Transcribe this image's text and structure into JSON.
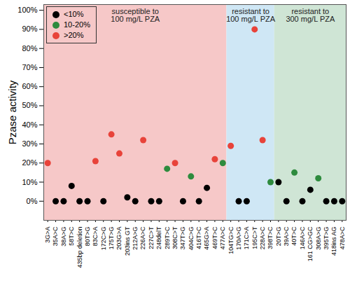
{
  "chart_data": {
    "type": "scatter",
    "y_label": "Pzase activity",
    "categories": [
      "3G>A",
      "35A>C",
      "38A>G",
      "58T>C",
      "435bp deletion",
      "80T>G",
      "83C>A",
      "172C>G",
      "175T>G",
      "203G>A",
      "203ins GT",
      "212A>G",
      "226A>C",
      "227C>T",
      "248delT",
      "289T>C",
      "308C>T",
      "347T>G",
      "404C>G",
      "416T>C",
      "465G>A",
      "469T>C",
      "477A>C",
      "104TG>C",
      "170A>G",
      "171C>A",
      "195C>T",
      "228A>C",
      "398T>C",
      "20T>G",
      "39A>C",
      "40T>C",
      "146A>C",
      "161 CG>GC",
      "308A>G",
      "395T>G",
      "418ins AG",
      "478A>C"
    ],
    "series": [
      {
        "name": "<10%",
        "color": "#000000",
        "marker": "circle",
        "values": [
          null,
          0,
          0,
          8,
          0,
          0,
          null,
          0,
          null,
          null,
          2,
          0,
          null,
          0,
          0,
          null,
          null,
          0,
          null,
          0,
          7,
          null,
          null,
          null,
          0,
          0,
          null,
          null,
          null,
          10,
          0,
          null,
          0,
          6,
          null,
          0,
          0,
          0
        ]
      },
      {
        "name": "10-20%",
        "color": "#2e8b3e",
        "marker": "circle",
        "values": [
          null,
          null,
          null,
          null,
          null,
          null,
          null,
          null,
          null,
          null,
          null,
          null,
          null,
          null,
          null,
          17,
          null,
          null,
          13,
          null,
          null,
          null,
          20,
          null,
          null,
          null,
          null,
          null,
          10,
          null,
          null,
          15,
          null,
          null,
          12,
          null,
          null,
          null
        ]
      },
      {
        "name": ">20%",
        "color": "#e8433a",
        "marker": "circle",
        "values": [
          20,
          null,
          null,
          null,
          null,
          null,
          21,
          null,
          35,
          25,
          null,
          null,
          32,
          null,
          null,
          null,
          20,
          null,
          null,
          null,
          null,
          22,
          null,
          29,
          null,
          null,
          90,
          32,
          null,
          null,
          null,
          null,
          null,
          null,
          null,
          null,
          null,
          null
        ]
      }
    ],
    "regions": [
      {
        "lines": [
          "susceptible to",
          "100 mg/L PZA"
        ],
        "start": 0,
        "end": 22,
        "color": "#f6c8c8"
      },
      {
        "lines": [
          "resistant to",
          "100 mg/L PZA"
        ],
        "start": 23,
        "end": 28,
        "color": "#cfe7f5"
      },
      {
        "lines": [
          "resistant to",
          "300 mg/L PZA"
        ],
        "start": 29,
        "end": 37,
        "color": "#cfe5d5"
      }
    ],
    "ylim": [
      -10,
      103
    ],
    "yticks": [
      {
        "value": 0,
        "label": "0%"
      },
      {
        "value": 10,
        "label": "10%"
      },
      {
        "value": 20,
        "label": "20%"
      },
      {
        "value": 30,
        "label": "30%"
      },
      {
        "value": 40,
        "label": "40%"
      },
      {
        "value": 50,
        "label": "50%"
      },
      {
        "value": 60,
        "label": "60%"
      },
      {
        "value": 70,
        "label": "70%"
      },
      {
        "value": 80,
        "label": "80%"
      },
      {
        "value": 90,
        "label": "90%"
      },
      {
        "value": 100,
        "label": "100%"
      }
    ],
    "grid": false,
    "legend": "top-left"
  }
}
